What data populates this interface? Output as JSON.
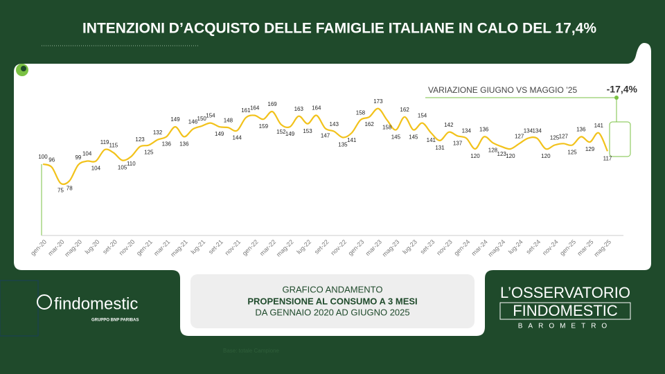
{
  "title": "INTENZIONI D’ACQUISTO DELLE FAMIGLIE ITALIANE IN CALO DEL 17,4%",
  "chart_data": {
    "type": "line",
    "annotation": "VARIAZIONE GIUGNO VS MAGGIO ’25",
    "annotation_value": "-17,4%",
    "color": "#f2c21b",
    "categories": [
      "gen-20",
      null,
      "mar-20",
      null,
      "mag-20",
      null,
      "lug-20",
      null,
      "set-20",
      null,
      "nov-20",
      null,
      "gen-21",
      null,
      "mar-21",
      null,
      "mag-21",
      null,
      "lug-21",
      null,
      "set-21",
      null,
      "nov-21",
      null,
      "gen-22",
      null,
      "mar-22",
      null,
      "mag-22",
      null,
      "lug-22",
      null,
      "set-22",
      null,
      "nov-22",
      null,
      "gen-23",
      null,
      "mar-23",
      null,
      "mag-23",
      null,
      "lug-23",
      null,
      "set-23",
      null,
      "nov-23",
      null,
      "gen-24",
      null,
      "mar-24",
      null,
      "mag-24",
      null,
      "lug-24",
      null,
      "set-24",
      null,
      "nov-24",
      null,
      "gen-25",
      null,
      "mar-25",
      null,
      "mag-25"
    ],
    "values": [
      100,
      96,
      75,
      78,
      99,
      104,
      104,
      119,
      115,
      105,
      110,
      123,
      125,
      132,
      136,
      149,
      136,
      146,
      150,
      154,
      149,
      148,
      144,
      161,
      164,
      159,
      169,
      152,
      149,
      163,
      153,
      164,
      147,
      143,
      135,
      141,
      158,
      162,
      173,
      158,
      145,
      162,
      145,
      154,
      141,
      131,
      142,
      137,
      134,
      120,
      136,
      128,
      123,
      120,
      127,
      134,
      134,
      120,
      125,
      127,
      125,
      136,
      129,
      141,
      117
    ]
  },
  "footer": {
    "line1": "GRAFICO ANDAMENTO",
    "line2": "PROPENSIONE AL CONSUMO A 3 MESI",
    "line3": "DA GENNAIO 2020 AD GIUGNO 2025"
  },
  "logo": {
    "name": "findomestic",
    "group": "GRUPPO BNP PARIBAS"
  },
  "brand": {
    "line1": "L’OSSERVATORIO",
    "line2": "FINDOMESTIC",
    "line3": "BAROMETRO"
  },
  "note": "Base: totale Campione"
}
